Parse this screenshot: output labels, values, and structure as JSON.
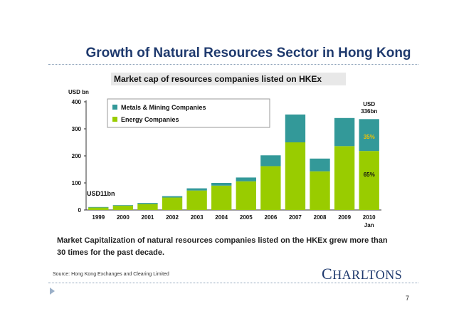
{
  "slide": {
    "title": "Growth of Natural Resources Sector in Hong Kong",
    "caption": "Market Capitalization of natural resources companies listed on the HKEx grew more than 30 times for the past decade.",
    "source": "Source: Hong Kong Exchanges and Clearing Limited",
    "logo_text": "CHARLTONS",
    "page_number": "7"
  },
  "chart_data": {
    "type": "bar",
    "stacked": true,
    "title": "Market cap of resources companies listed on HKEx",
    "ylabel": "USD bn",
    "ylim": [
      0,
      400
    ],
    "yticks": [
      "0",
      "100",
      "200",
      "300",
      "400"
    ],
    "categories": [
      "1999",
      "2000",
      "2001",
      "2002",
      "2003",
      "2004",
      "2005",
      "2006",
      "2007",
      "2008",
      "2009",
      "2010"
    ],
    "category_sublabels": [
      "",
      "",
      "",
      "",
      "",
      "",
      "",
      "",
      "",
      "",
      "",
      "Jan"
    ],
    "series": [
      {
        "name": "Energy Companies",
        "color": "#99cc00",
        "values": [
          9,
          16,
          22,
          46,
          72,
          90,
          106,
          162,
          250,
          143,
          236,
          218
        ]
      },
      {
        "name": "Metals & Mining Companies",
        "color": "#339999",
        "values": [
          2,
          2,
          4,
          5,
          8,
          10,
          14,
          40,
          103,
          47,
          104,
          118
        ]
      }
    ],
    "legend_position": "top-left",
    "annotations": [
      {
        "category": "1999",
        "text": "USD11bn"
      },
      {
        "category": "2010",
        "text": "USD 336bn"
      },
      {
        "category": "2010",
        "text": "35%"
      },
      {
        "category": "2010",
        "text": "65%"
      }
    ]
  }
}
